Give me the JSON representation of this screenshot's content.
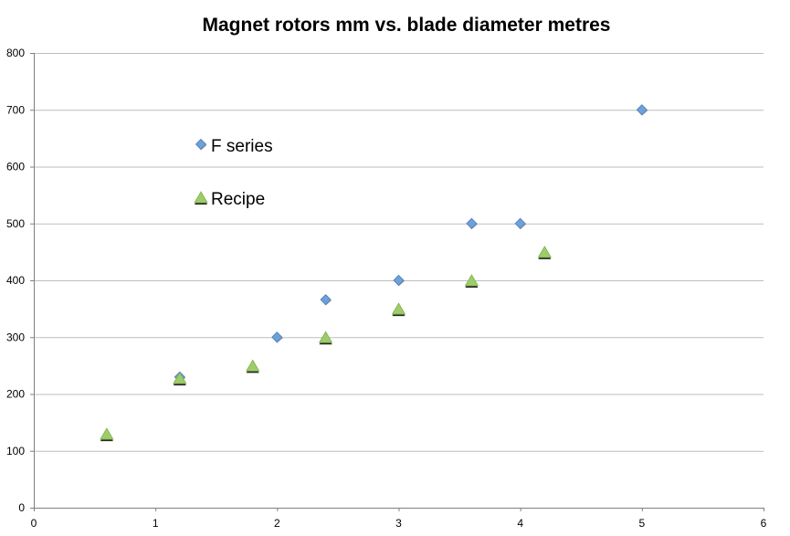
{
  "chart_data": {
    "type": "scatter",
    "title": "Magnet rotors mm vs. blade diameter metres",
    "xlabel": "",
    "ylabel": "",
    "xlim": [
      0,
      6
    ],
    "ylim": [
      0,
      800
    ],
    "xticks": [
      "0",
      "1",
      "2",
      "3",
      "4",
      "5",
      "6"
    ],
    "yticks": [
      "0",
      "100",
      "200",
      "300",
      "400",
      "500",
      "600",
      "700",
      "800"
    ],
    "grid": "horizontal",
    "legend_position": "upper-left-inside",
    "series": [
      {
        "name": "F series",
        "marker": "diamond",
        "color": "#6fa0d8",
        "points": [
          {
            "x": 1.2,
            "y": 230
          },
          {
            "x": 2.0,
            "y": 300
          },
          {
            "x": 2.4,
            "y": 366
          },
          {
            "x": 3.0,
            "y": 400
          },
          {
            "x": 3.6,
            "y": 500
          },
          {
            "x": 4.0,
            "y": 500
          },
          {
            "x": 5.0,
            "y": 700
          }
        ]
      },
      {
        "name": "Recipe",
        "marker": "triangle",
        "color": "#9fcc6b",
        "points": [
          {
            "x": 0.6,
            "y": 130
          },
          {
            "x": 1.2,
            "y": 228
          },
          {
            "x": 1.8,
            "y": 250
          },
          {
            "x": 2.4,
            "y": 300
          },
          {
            "x": 3.0,
            "y": 350
          },
          {
            "x": 3.6,
            "y": 400
          },
          {
            "x": 4.2,
            "y": 450
          }
        ]
      }
    ]
  }
}
